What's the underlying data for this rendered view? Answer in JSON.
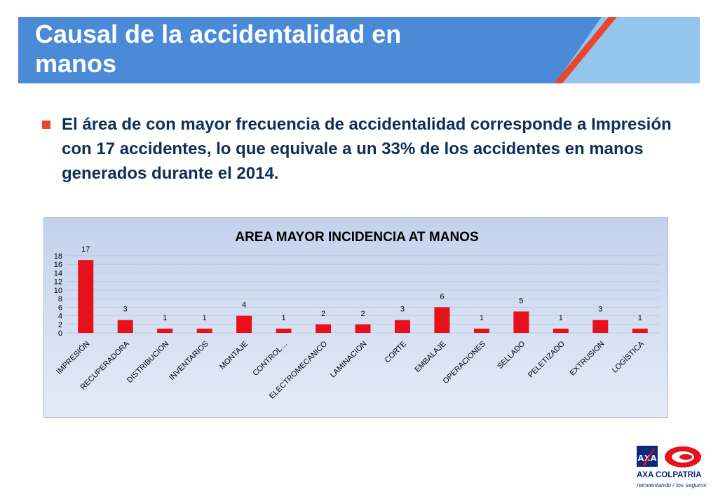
{
  "slide": {
    "title": "Causal de la accidentalidad en manos",
    "bullet": "El área de con mayor frecuencia de accidentalidad corresponde a Impresión con 17 accidentes, lo que equivale a un 33% de los accidentes en manos generados durante el 2014."
  },
  "logo": {
    "brand": "AXA COLPATRIA",
    "tagline": "reinventando / los seguros"
  },
  "colors": {
    "banner": "#4a8ad6",
    "banner_light": "#95c4ec",
    "accent": "#e8472d",
    "bar": "#e8101a",
    "text": "#0f2f57"
  },
  "chart_data": {
    "type": "bar",
    "title": "AREA  MAYOR INCIDENCIA AT  MANOS",
    "categories": [
      "IMPRESIÓN",
      "RECUPERADORA",
      "DISTRIBUCION",
      "INVENTARIOS",
      "MONTAJE",
      "CONTROL…",
      "ELECTROMECANICO",
      "LAMINACION",
      "CORTE",
      "EMBALAJE",
      "OPERACIONES",
      "SELLADO",
      "PELETIZADO",
      "EXTRUSION",
      "LOGÍSTICA"
    ],
    "values": [
      17,
      3,
      1,
      1,
      4,
      1,
      2,
      2,
      3,
      6,
      1,
      5,
      1,
      3,
      1
    ],
    "ylim": [
      0,
      18
    ],
    "yticks": [
      0,
      2,
      4,
      6,
      8,
      10,
      12,
      14,
      16,
      18
    ],
    "grid": true,
    "data_labels": true
  }
}
